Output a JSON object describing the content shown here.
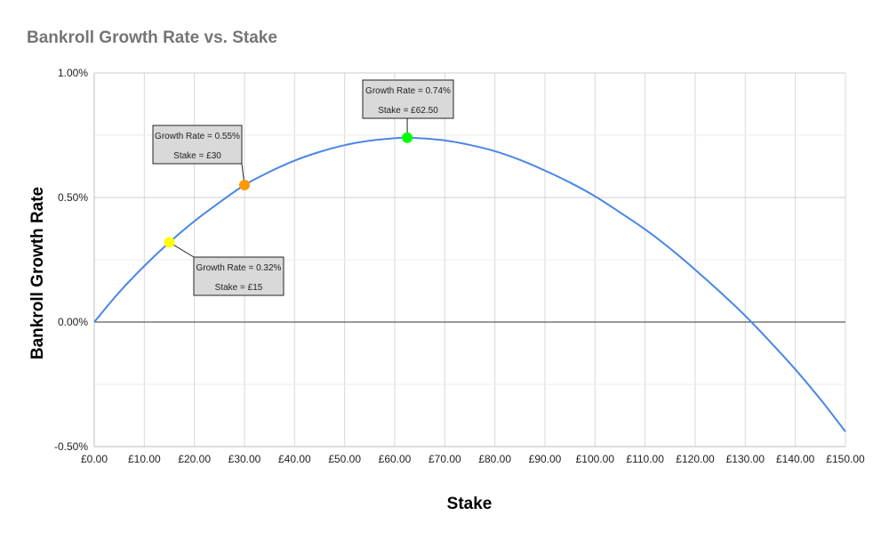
{
  "chart_data": {
    "type": "line",
    "title": "Bankroll Growth Rate vs. Stake",
    "xlabel": "Stake",
    "ylabel": "Bankroll Growth Rate",
    "xlim": [
      0,
      150
    ],
    "ylim": [
      -0.5,
      1.0
    ],
    "x_ticks": [
      {
        "value": 0,
        "label": "£0.00"
      },
      {
        "value": 10,
        "label": "£10.00"
      },
      {
        "value": 20,
        "label": "£20.00"
      },
      {
        "value": 30,
        "label": "£30.00"
      },
      {
        "value": 40,
        "label": "£40.00"
      },
      {
        "value": 50,
        "label": "£50.00"
      },
      {
        "value": 60,
        "label": "£60.00"
      },
      {
        "value": 70,
        "label": "£70.00"
      },
      {
        "value": 80,
        "label": "£80.00"
      },
      {
        "value": 90,
        "label": "£90.00"
      },
      {
        "value": 100,
        "label": "£100.00"
      },
      {
        "value": 110,
        "label": "£110.00"
      },
      {
        "value": 120,
        "label": "£120.00"
      },
      {
        "value": 130,
        "label": "£130.00"
      },
      {
        "value": 140,
        "label": "£140.00"
      },
      {
        "value": 150,
        "label": "£150.00"
      }
    ],
    "y_ticks": [
      {
        "value": 1.0,
        "label": "1.00%"
      },
      {
        "value": 0.5,
        "label": "0.50%"
      },
      {
        "value": 0.0,
        "label": "0.00%"
      },
      {
        "value": -0.5,
        "label": "-0.50%"
      }
    ],
    "y_minor_gridlines": [
      0.75,
      0.25,
      -0.25
    ],
    "grid": true,
    "line_color": "#4a86e8",
    "series": [
      {
        "x": [
          0,
          5,
          10,
          15,
          20,
          25,
          30,
          35,
          40,
          45,
          50,
          55,
          60,
          62.5,
          65,
          70,
          75,
          80,
          85,
          90,
          95,
          100,
          105,
          110,
          115,
          120,
          125,
          130,
          135,
          140,
          145,
          150
        ],
        "y": [
          0.0,
          0.12,
          0.225,
          0.32,
          0.405,
          0.48,
          0.55,
          0.603,
          0.648,
          0.683,
          0.71,
          0.728,
          0.738,
          0.74,
          0.738,
          0.729,
          0.711,
          0.686,
          0.651,
          0.608,
          0.56,
          0.505,
          0.44,
          0.372,
          0.295,
          0.21,
          0.12,
          0.025,
          -0.08,
          -0.19,
          -0.31,
          -0.44
        ]
      }
    ],
    "highlight_points": [
      {
        "x": 15,
        "y": 0.32,
        "color": "#ffff00",
        "label_line1": "Growth Rate = 0.32%",
        "label_line2": "Stake = £15"
      },
      {
        "x": 30,
        "y": 0.55,
        "color": "#ff9900",
        "label_line1": "Growth Rate = 0.55%",
        "label_line2": "Stake = £30"
      },
      {
        "x": 62.5,
        "y": 0.74,
        "color": "#00ff00",
        "label_line1": "Growth Rate = 0.74%",
        "label_line2": "Stake = £62.50"
      }
    ]
  }
}
